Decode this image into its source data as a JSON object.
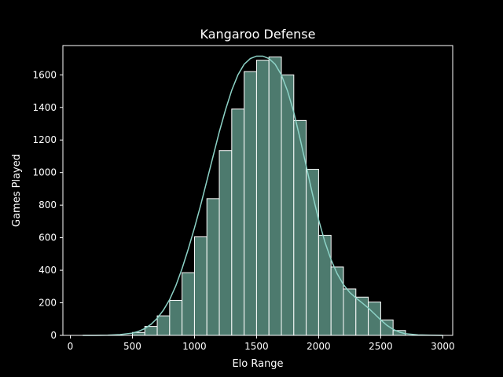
{
  "chart_data": {
    "type": "bar",
    "title": "Kangaroo Defense",
    "xlabel": "Elo Range",
    "ylabel": "Games Played",
    "xlim": [
      -60,
      3080
    ],
    "ylim": [
      0,
      1780
    ],
    "xticks": [
      0,
      500,
      1000,
      1500,
      2000,
      2500,
      3000
    ],
    "yticks": [
      0,
      200,
      400,
      600,
      800,
      1000,
      1200,
      1400,
      1600
    ],
    "bin_width": 100,
    "bins": [
      {
        "start": 500,
        "end": 600,
        "value": 18
      },
      {
        "start": 600,
        "end": 700,
        "value": 55
      },
      {
        "start": 700,
        "end": 800,
        "value": 120
      },
      {
        "start": 800,
        "end": 900,
        "value": 215
      },
      {
        "start": 900,
        "end": 1000,
        "value": 385
      },
      {
        "start": 1000,
        "end": 1100,
        "value": 605
      },
      {
        "start": 1100,
        "end": 1200,
        "value": 840
      },
      {
        "start": 1200,
        "end": 1300,
        "value": 1135
      },
      {
        "start": 1300,
        "end": 1400,
        "value": 1390
      },
      {
        "start": 1400,
        "end": 1500,
        "value": 1620
      },
      {
        "start": 1500,
        "end": 1600,
        "value": 1690
      },
      {
        "start": 1600,
        "end": 1700,
        "value": 1710
      },
      {
        "start": 1700,
        "end": 1800,
        "value": 1600
      },
      {
        "start": 1800,
        "end": 1900,
        "value": 1320
      },
      {
        "start": 1900,
        "end": 2000,
        "value": 1020
      },
      {
        "start": 2000,
        "end": 2100,
        "value": 615
      },
      {
        "start": 2100,
        "end": 2200,
        "value": 420
      },
      {
        "start": 2200,
        "end": 2300,
        "value": 285
      },
      {
        "start": 2300,
        "end": 2400,
        "value": 235
      },
      {
        "start": 2400,
        "end": 2500,
        "value": 205
      },
      {
        "start": 2500,
        "end": 2600,
        "value": 95
      },
      {
        "start": 2600,
        "end": 2700,
        "value": 30
      }
    ],
    "kde": {
      "x": [
        100,
        200,
        300,
        400,
        500,
        550,
        600,
        650,
        700,
        750,
        800,
        850,
        900,
        950,
        1000,
        1050,
        1100,
        1150,
        1200,
        1250,
        1300,
        1350,
        1400,
        1450,
        1500,
        1550,
        1600,
        1650,
        1700,
        1750,
        1800,
        1850,
        1900,
        1950,
        2000,
        2050,
        2100,
        2150,
        2200,
        2250,
        2300,
        2350,
        2400,
        2450,
        2500,
        2550,
        2600,
        2650,
        2700,
        2800,
        2900,
        3000
      ],
      "y": [
        0,
        0,
        1,
        5,
        14,
        25,
        42,
        68,
        105,
        155,
        220,
        305,
        410,
        530,
        660,
        800,
        950,
        1100,
        1250,
        1385,
        1505,
        1600,
        1665,
        1700,
        1715,
        1715,
        1700,
        1665,
        1600,
        1500,
        1370,
        1210,
        1040,
        870,
        710,
        575,
        465,
        378,
        312,
        264,
        230,
        200,
        168,
        132,
        95,
        62,
        37,
        20,
        10,
        3,
        1,
        0
      ]
    },
    "colors": {
      "bar_fill": "#4d7a6e",
      "bar_edge": "#ffffff",
      "kde_line": "#8dd3c7",
      "background": "#000000",
      "foreground": "#ffffff"
    },
    "grid": false,
    "legend": "none"
  }
}
